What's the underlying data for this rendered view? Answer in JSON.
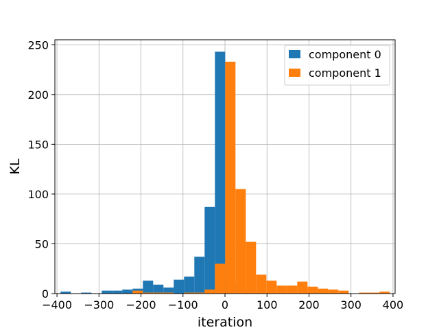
{
  "chart_data": {
    "type": "bar",
    "title": "",
    "xlabel": "iteration",
    "ylabel": "KL",
    "xlim": [
      -405,
      405
    ],
    "ylim": [
      0,
      255
    ],
    "xticks": [
      -400,
      -300,
      -200,
      -100,
      0,
      100,
      200,
      300,
      400
    ],
    "yticks": [
      0,
      50,
      100,
      150,
      200,
      250
    ],
    "grid": true,
    "legend_position": "top-right",
    "bin_width": 24.5,
    "series": [
      {
        "name": "component 0",
        "color": "#1f77b4",
        "bins": [
          {
            "x0": -391.5,
            "value": 2
          },
          {
            "x0": -342.5,
            "value": 1
          },
          {
            "x0": -293.5,
            "value": 3
          },
          {
            "x0": -269.0,
            "value": 3
          },
          {
            "x0": -244.5,
            "value": 4
          },
          {
            "x0": -220.0,
            "value": 5
          },
          {
            "x0": -195.5,
            "value": 13
          },
          {
            "x0": -171.0,
            "value": 9
          },
          {
            "x0": -146.5,
            "value": 6
          },
          {
            "x0": -122.0,
            "value": 14
          },
          {
            "x0": -97.5,
            "value": 17
          },
          {
            "x0": -73.0,
            "value": 37
          },
          {
            "x0": -48.5,
            "value": 87
          },
          {
            "x0": -24.0,
            "value": 243
          },
          {
            "x0": 0.5,
            "value": 12
          },
          {
            "x0": 25.0,
            "value": 3
          },
          {
            "x0": 49.5,
            "value": 1
          }
        ]
      },
      {
        "name": "component 1",
        "color": "#ff7f0e",
        "bins": [
          {
            "x0": -220.0,
            "value": 3
          },
          {
            "x0": -195.5,
            "value": 1
          },
          {
            "x0": -171.0,
            "value": 1
          },
          {
            "x0": -146.5,
            "value": 1
          },
          {
            "x0": -97.5,
            "value": 1
          },
          {
            "x0": -73.0,
            "value": 1
          },
          {
            "x0": -48.5,
            "value": 4
          },
          {
            "x0": -24.0,
            "value": 30
          },
          {
            "x0": 0.5,
            "value": 233
          },
          {
            "x0": 25.0,
            "value": 105
          },
          {
            "x0": 49.5,
            "value": 52
          },
          {
            "x0": 74.0,
            "value": 19
          },
          {
            "x0": 98.5,
            "value": 13
          },
          {
            "x0": 123.0,
            "value": 8
          },
          {
            "x0": 147.5,
            "value": 8
          },
          {
            "x0": 172.0,
            "value": 12
          },
          {
            "x0": 196.5,
            "value": 7
          },
          {
            "x0": 221.0,
            "value": 5
          },
          {
            "x0": 245.5,
            "value": 4
          },
          {
            "x0": 270.0,
            "value": 3
          },
          {
            "x0": 319.0,
            "value": 1
          },
          {
            "x0": 343.5,
            "value": 1
          },
          {
            "x0": 368.0,
            "value": 2
          }
        ]
      }
    ]
  }
}
